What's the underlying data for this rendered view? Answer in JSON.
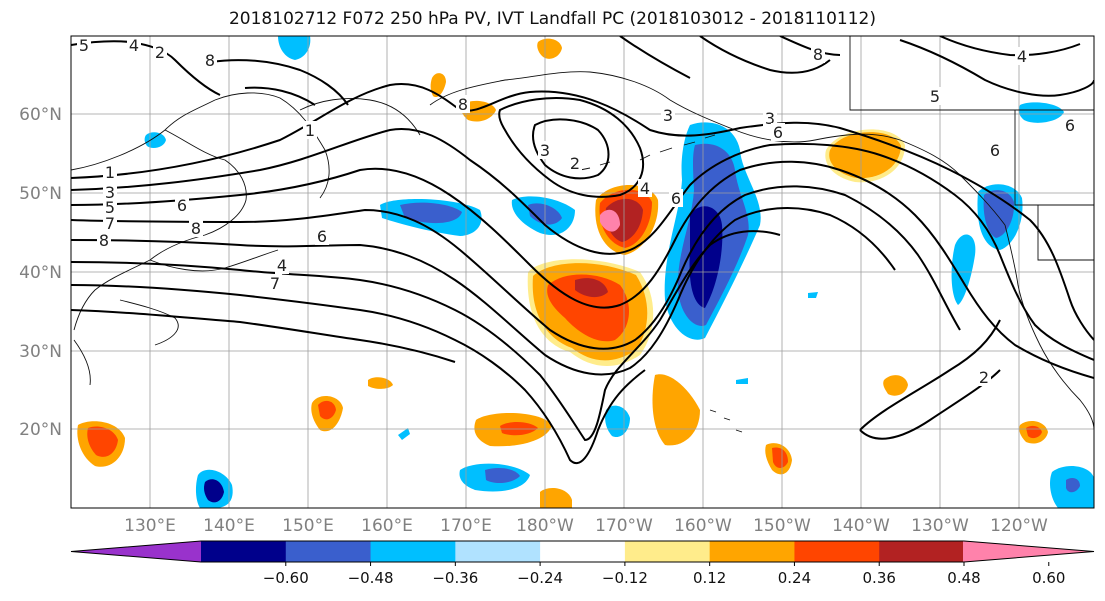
{
  "title": "2018102712 F072 250 hPa PV, IVT Landfall PC (2018103012 - 2018110112)",
  "lat_labels": [
    "60°N",
    "50°N",
    "40°N",
    "30°N",
    "20°N"
  ],
  "lon_labels": [
    "130°E",
    "140°E",
    "150°E",
    "160°E",
    "170°E",
    "180°W",
    "170°W",
    "160°W",
    "150°W",
    "140°W",
    "130°W",
    "120°W"
  ],
  "colorbar": {
    "ticks": [
      "−0.60",
      "−0.48",
      "−0.36",
      "−0.24",
      "−0.12",
      "0.12",
      "0.24",
      "0.36",
      "0.48",
      "0.60"
    ],
    "colors": [
      "#9932cc",
      "#00008b",
      "#3a5fcd",
      "#00bfff",
      "#b0e2ff",
      "#ffffff",
      "#ffec8b",
      "#ffa500",
      "#ff4500",
      "#b22222",
      "#ff82ab"
    ]
  },
  "contour_labels": [
    "5",
    "4",
    "2",
    "8",
    "1",
    "1",
    "3",
    "5",
    "7",
    "8",
    "6",
    "8",
    "6",
    "4",
    "7",
    "8",
    "3",
    "2",
    "4",
    "6",
    "3",
    "3",
    "8",
    "6",
    "6",
    "5",
    "4",
    "6",
    "2"
  ]
}
